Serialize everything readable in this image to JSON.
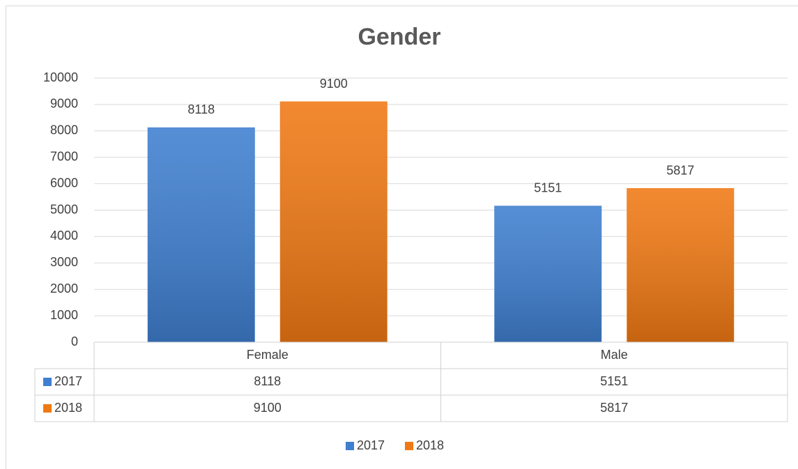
{
  "chart_data": {
    "type": "bar",
    "title": "Gender",
    "categories": [
      "Female",
      "Male"
    ],
    "series": [
      {
        "name": "2017",
        "color": "#3f7fd0",
        "values": [
          8118,
          5151
        ]
      },
      {
        "name": "2018",
        "color": "#f07914",
        "values": [
          9100,
          5817
        ]
      }
    ],
    "ylim": [
      0,
      10000
    ],
    "yticks": [
      0,
      1000,
      2000,
      3000,
      4000,
      5000,
      6000,
      7000,
      8000,
      9000,
      10000
    ],
    "grid": true,
    "data_table": true,
    "legend": "bottom"
  }
}
